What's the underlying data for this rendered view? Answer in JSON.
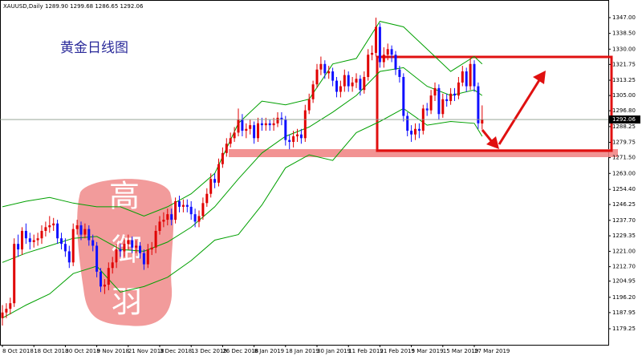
{
  "chart_data": {
    "type": "candlestick",
    "header": {
      "symbol": "XAUUSD,Daily",
      "ohlc": "1289.90 1299.68 1286.65 1292.06"
    },
    "title": "黄金日线图",
    "watermark": [
      "高",
      "御",
      "羽"
    ],
    "up_color": "#e00000",
    "down_color": "#1010ff",
    "categories": [
      "8 Oct 2018",
      null,
      null,
      null,
      null,
      null,
      null,
      null,
      "18 Oct 2018",
      null,
      null,
      null,
      null,
      null,
      null,
      null,
      "30 Oct 2018",
      null,
      null,
      null,
      null,
      null,
      null,
      null,
      "9 Nov 2018",
      null,
      null,
      null,
      null,
      null,
      null,
      null,
      "21 Nov 2018",
      null,
      null,
      null,
      null,
      null,
      null,
      null,
      "3 Dec 2018",
      null,
      null,
      null,
      null,
      null,
      null,
      null,
      "13 Dec 2018",
      null,
      null,
      null,
      null,
      null,
      null,
      null,
      "26 Dec 2018",
      null,
      null,
      null,
      null,
      null,
      null,
      null,
      "8 Jan 2019",
      null,
      null,
      null,
      null,
      null,
      null,
      null,
      "18 Jan 2019",
      null,
      null,
      null,
      null,
      null,
      null,
      null,
      "30 Jan 2019",
      null,
      null,
      null,
      null,
      null,
      null,
      null,
      "11 Feb 2019",
      null,
      null,
      null,
      null,
      null,
      null,
      null,
      "21 Feb 2019",
      null,
      null,
      null,
      null,
      null,
      null,
      null,
      "5 Mar 2019",
      null,
      null,
      null,
      null,
      null,
      null,
      null,
      "15 Mar 2019",
      null,
      null,
      null,
      null,
      null,
      null,
      null,
      "27 Mar 2019",
      null,
      null
    ],
    "open": [
      1185,
      1188,
      1190,
      1193,
      1225,
      1222,
      1232,
      1228,
      1226,
      1227,
      1228,
      1232,
      1234,
      1235,
      1236,
      1228,
      1225,
      1221,
      1215,
      1233,
      1235,
      1230,
      1233,
      1227,
      1224,
      1210,
      1202,
      1203,
      1212,
      1215,
      1222,
      1221,
      1225,
      1227,
      1223,
      1224,
      1220,
      1214,
      1222,
      1223,
      1232,
      1237,
      1238,
      1241,
      1238,
      1248,
      1245,
      1246,
      1245,
      1241,
      1237,
      1240,
      1247,
      1252,
      1260,
      1258,
      1268,
      1274,
      1279,
      1282,
      1285,
      1292,
      1286,
      1287,
      1289,
      1282,
      1290,
      1289,
      1290,
      1289,
      1290,
      1293,
      1292,
      1281,
      1280,
      1283,
      1284,
      1282,
      1297,
      1303,
      1311,
      1319,
      1322,
      1317,
      1318,
      1313,
      1307,
      1310,
      1316,
      1310,
      1312,
      1314,
      1308,
      1315,
      1327,
      1328,
      1342,
      1323,
      1327,
      1330,
      1327,
      1319,
      1315,
      1294,
      1286,
      1284,
      1287,
      1286,
      1298,
      1297,
      1305,
      1309,
      1295,
      1303,
      1302,
      1306,
      1305,
      1312,
      1318,
      1310,
      1322,
      1310,
      1289.9
    ],
    "high": [
      1192,
      1193,
      1196,
      1228,
      1230,
      1234,
      1236,
      1231,
      1230,
      1231,
      1235,
      1237,
      1240,
      1239,
      1238,
      1231,
      1228,
      1224,
      1236,
      1238,
      1237,
      1236,
      1235,
      1230,
      1226,
      1212,
      1206,
      1215,
      1218,
      1225,
      1225,
      1228,
      1230,
      1229,
      1227,
      1226,
      1222,
      1225,
      1226,
      1235,
      1240,
      1242,
      1244,
      1244,
      1250,
      1251,
      1249,
      1249,
      1248,
      1244,
      1243,
      1250,
      1255,
      1263,
      1263,
      1271,
      1277,
      1282,
      1285,
      1288,
      1298,
      1295,
      1290,
      1292,
      1291,
      1293,
      1293,
      1293,
      1292,
      1293,
      1296,
      1296,
      1294,
      1284,
      1286,
      1287,
      1287,
      1300,
      1306,
      1313,
      1322,
      1326,
      1324,
      1321,
      1320,
      1315,
      1313,
      1319,
      1318,
      1315,
      1317,
      1316,
      1318,
      1330,
      1332,
      1347,
      1344,
      1331,
      1333,
      1332,
      1329,
      1321,
      1317,
      1296,
      1289,
      1290,
      1290,
      1300,
      1301,
      1308,
      1312,
      1311,
      1306,
      1306,
      1309,
      1309,
      1315,
      1321,
      1320,
      1325,
      1324,
      1312,
      1299.68
    ],
    "low": [
      1181,
      1185,
      1187,
      1191,
      1218,
      1219,
      1225,
      1222,
      1223,
      1224,
      1225,
      1229,
      1231,
      1232,
      1225,
      1222,
      1218,
      1212,
      1213,
      1230,
      1227,
      1228,
      1224,
      1221,
      1207,
      1199,
      1198,
      1200,
      1209,
      1212,
      1218,
      1218,
      1222,
      1220,
      1220,
      1217,
      1211,
      1212,
      1219,
      1220,
      1230,
      1234,
      1235,
      1235,
      1236,
      1242,
      1242,
      1242,
      1238,
      1234,
      1234,
      1238,
      1245,
      1250,
      1255,
      1256,
      1266,
      1272,
      1277,
      1280,
      1283,
      1283,
      1282,
      1284,
      1279,
      1280,
      1286,
      1286,
      1286,
      1286,
      1288,
      1289,
      1278,
      1276,
      1277,
      1280,
      1279,
      1280,
      1295,
      1301,
      1309,
      1316,
      1314,
      1314,
      1310,
      1304,
      1304,
      1307,
      1307,
      1307,
      1309,
      1305,
      1306,
      1313,
      1324,
      1326,
      1320,
      1320,
      1324,
      1323,
      1316,
      1312,
      1291,
      1283,
      1280,
      1281,
      1282,
      1284,
      1294,
      1295,
      1302,
      1292,
      1293,
      1299,
      1300,
      1302,
      1303,
      1310,
      1307,
      1308,
      1307,
      1287,
      1286.65
    ],
    "close": [
      1188,
      1190,
      1193,
      1225,
      1222,
      1232,
      1228,
      1226,
      1227,
      1228,
      1232,
      1234,
      1235,
      1236,
      1228,
      1225,
      1221,
      1215,
      1233,
      1235,
      1230,
      1233,
      1227,
      1224,
      1210,
      1202,
      1203,
      1212,
      1215,
      1222,
      1221,
      1225,
      1227,
      1223,
      1224,
      1220,
      1214,
      1222,
      1223,
      1232,
      1237,
      1238,
      1241,
      1238,
      1248,
      1245,
      1246,
      1245,
      1241,
      1237,
      1240,
      1247,
      1252,
      1260,
      1258,
      1268,
      1274,
      1279,
      1282,
      1285,
      1292,
      1286,
      1287,
      1289,
      1282,
      1290,
      1289,
      1290,
      1289,
      1290,
      1293,
      1292,
      1281,
      1280,
      1283,
      1284,
      1282,
      1297,
      1303,
      1311,
      1319,
      1322,
      1317,
      1318,
      1313,
      1307,
      1310,
      1316,
      1310,
      1312,
      1314,
      1308,
      1315,
      1327,
      1328,
      1342,
      1323,
      1327,
      1330,
      1327,
      1319,
      1315,
      1294,
      1286,
      1284,
      1287,
      1286,
      1298,
      1297,
      1305,
      1309,
      1295,
      1303,
      1302,
      1306,
      1305,
      1312,
      1318,
      1310,
      1322,
      1310,
      1290,
      1292.06
    ],
    "series": [
      {
        "name": "BB upper",
        "color": "#00a000",
        "x": [
          0,
          6,
          12,
          18,
          24,
          30,
          36,
          42,
          48,
          54,
          60,
          66,
          72,
          78,
          84,
          90,
          96,
          102,
          108,
          114,
          120,
          122
        ],
        "values": [
          1245,
          1248,
          1250,
          1247,
          1245,
          1245,
          1240,
          1245,
          1252,
          1263,
          1290,
          1302,
          1300,
          1303,
          1322,
          1325,
          1345,
          1342,
          1330,
          1318,
          1326,
          1322
        ]
      },
      {
        "name": "BB middle",
        "color": "#00a000",
        "x": [
          0,
          6,
          12,
          18,
          24,
          30,
          36,
          42,
          48,
          54,
          60,
          66,
          72,
          78,
          84,
          90,
          96,
          102,
          108,
          114,
          120,
          122
        ],
        "values": [
          1215,
          1220,
          1224,
          1228,
          1229,
          1222,
          1221,
          1226,
          1234,
          1245,
          1260,
          1274,
          1283,
          1288,
          1296,
          1305,
          1318,
          1320,
          1310,
          1305,
          1308,
          1305
        ]
      },
      {
        "name": "BB lower",
        "color": "#00a000",
        "x": [
          0,
          6,
          12,
          18,
          24,
          30,
          36,
          42,
          48,
          54,
          60,
          66,
          72,
          78,
          84,
          90,
          96,
          102,
          108,
          114,
          120,
          122
        ],
        "values": [
          1185,
          1192,
          1198,
          1209,
          1213,
          1199,
          1202,
          1207,
          1216,
          1227,
          1230,
          1246,
          1266,
          1273,
          1270,
          1285,
          1291,
          1298,
          1289,
          1291,
          1290,
          1283
        ]
      }
    ],
    "ylim": [
      1170.6,
      1356.5
    ],
    "yticks": [
      {
        "value": 1347,
        "label": "1347.00"
      },
      {
        "value": 1338.5,
        "label": "1338.50"
      },
      {
        "value": 1330,
        "label": "1330.00"
      },
      {
        "value": 1321.75,
        "label": "1321.75"
      },
      {
        "value": 1313.25,
        "label": "1313.25"
      },
      {
        "value": 1305,
        "label": "1305.00"
      },
      {
        "value": 1296.8,
        "label": "1296.80"
      },
      {
        "value": 1288.25,
        "label": "1288.25"
      },
      {
        "value": 1279.75,
        "label": "1279.75"
      },
      {
        "value": 1271.5,
        "label": "1271.50"
      },
      {
        "value": 1263,
        "label": "1263.00"
      },
      {
        "value": 1254.4,
        "label": "1254.40"
      },
      {
        "value": 1246.25,
        "label": "1246.25"
      },
      {
        "value": 1237.7,
        "label": "1237.70"
      },
      {
        "value": 1229.35,
        "label": "1229.35"
      },
      {
        "value": 1221,
        "label": "1221.00"
      },
      {
        "value": 1212.7,
        "label": "1212.70"
      },
      {
        "value": 1204.95,
        "label": "1204.95"
      },
      {
        "value": 1196.2,
        "label": "1196.20"
      },
      {
        "value": 1187.95,
        "label": "1187.95"
      },
      {
        "value": 1179.25,
        "label": "1179.25"
      }
    ]
  }
}
